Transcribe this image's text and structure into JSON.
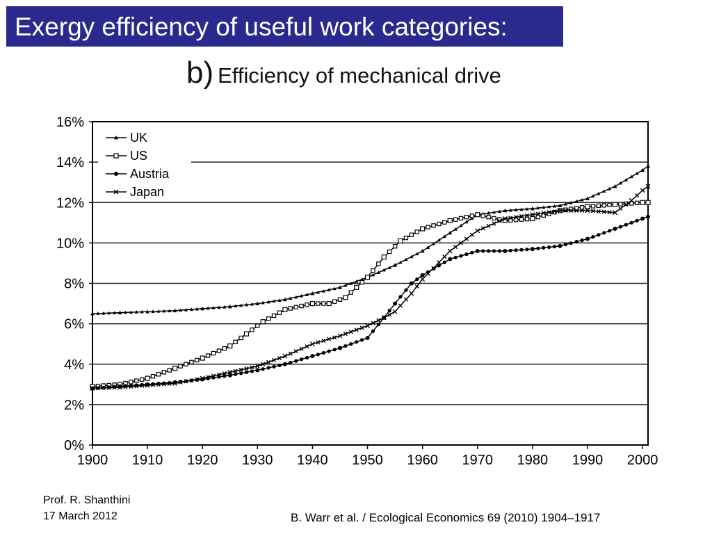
{
  "slide": {
    "title": "Exergy efficiency of useful work categories:",
    "panel_label": "b)",
    "chart_title": "Efficiency of mechanical drive",
    "author": "Prof. R. Shanthini",
    "date": "17 March 2012",
    "citation": "B. Warr et al. / Ecological Economics 69 (2010) 1904–1917",
    "accent_color": "#2a2a8e"
  },
  "chart_data": {
    "type": "line",
    "title": "Efficiency of mechanical drive",
    "xlabel": "",
    "ylabel": "",
    "xlim": [
      1900,
      2001
    ],
    "ylim": [
      0,
      16
    ],
    "x_ticks": [
      1900,
      1910,
      1920,
      1930,
      1940,
      1950,
      1960,
      1970,
      1980,
      1990,
      2000
    ],
    "x_tick_labels": [
      "1900",
      "1910",
      "1920",
      "1930",
      "1940",
      "1950",
      "1960",
      "1970",
      "1980",
      "1990",
      "2000"
    ],
    "y_ticks": [
      0,
      2,
      4,
      6,
      8,
      10,
      12,
      14,
      16
    ],
    "y_tick_labels": [
      "0%",
      "2%",
      "4%",
      "6%",
      "8%",
      "10%",
      "12%",
      "14%",
      "16%"
    ],
    "grid": "horizontal",
    "legend_position": "top-left",
    "series": [
      {
        "name": "UK",
        "marker": "triangle",
        "x": [
          1900,
          1905,
          1910,
          1915,
          1920,
          1925,
          1930,
          1935,
          1940,
          1945,
          1950,
          1955,
          1960,
          1965,
          1970,
          1975,
          1980,
          1985,
          1990,
          1995,
          2000,
          2001
        ],
        "values": [
          6.5,
          6.55,
          6.6,
          6.65,
          6.75,
          6.85,
          7.0,
          7.2,
          7.5,
          7.8,
          8.3,
          8.9,
          9.6,
          10.5,
          11.4,
          11.6,
          11.7,
          11.85,
          12.2,
          12.8,
          13.6,
          13.8
        ]
      },
      {
        "name": "US",
        "marker": "square",
        "x": [
          1900,
          1905,
          1910,
          1915,
          1920,
          1925,
          1928,
          1931,
          1935,
          1940,
          1943,
          1946,
          1948,
          1950,
          1953,
          1956,
          1960,
          1965,
          1970,
          1975,
          1980,
          1985,
          1990,
          1995,
          2000,
          2001
        ],
        "values": [
          2.9,
          3.0,
          3.3,
          3.8,
          4.3,
          4.9,
          5.5,
          6.1,
          6.7,
          7.0,
          7.0,
          7.3,
          7.8,
          8.3,
          9.3,
          10.1,
          10.7,
          11.1,
          11.4,
          11.1,
          11.2,
          11.6,
          11.8,
          11.9,
          12.0,
          12.0
        ]
      },
      {
        "name": "Austria",
        "marker": "circle",
        "x": [
          1900,
          1905,
          1910,
          1915,
          1920,
          1925,
          1930,
          1935,
          1940,
          1945,
          1950,
          1953,
          1955,
          1958,
          1960,
          1965,
          1970,
          1975,
          1980,
          1985,
          1990,
          1995,
          2000,
          2001
        ],
        "values": [
          2.8,
          2.9,
          3.0,
          3.1,
          3.25,
          3.45,
          3.7,
          4.0,
          4.4,
          4.8,
          5.3,
          6.3,
          7.0,
          8.0,
          8.4,
          9.2,
          9.6,
          9.6,
          9.7,
          9.85,
          10.2,
          10.7,
          11.2,
          11.3
        ]
      },
      {
        "name": "Japan",
        "marker": "x",
        "x": [
          1900,
          1905,
          1910,
          1915,
          1920,
          1925,
          1930,
          1935,
          1940,
          1945,
          1950,
          1953,
          1955,
          1958,
          1960,
          1965,
          1970,
          1975,
          1980,
          1985,
          1990,
          1995,
          1998,
          2000,
          2001
        ],
        "values": [
          2.8,
          2.85,
          2.95,
          3.05,
          3.3,
          3.6,
          3.9,
          4.4,
          5.0,
          5.4,
          5.9,
          6.3,
          6.6,
          7.5,
          8.2,
          9.6,
          10.6,
          11.2,
          11.4,
          11.6,
          11.6,
          11.5,
          12.1,
          12.6,
          12.8
        ]
      }
    ]
  }
}
